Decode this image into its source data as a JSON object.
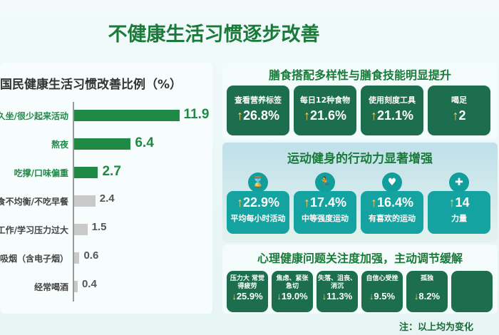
{
  "title": "不健康生活习惯逐步改善",
  "chart_data": {
    "type": "bar",
    "title": "国民健康生活习惯改善比例（%）",
    "categories": [
      "久坐/很少起来活动",
      "熬夜",
      "吃撑/口味偏重",
      "饮食不均衡/不吃早餐",
      "工作/学习压力过大",
      "吸烟（含电子烟）",
      "经常喝酒"
    ],
    "values": [
      11.9,
      6.4,
      2.7,
      2.4,
      1.5,
      0.6,
      0.4
    ],
    "value_labels": [
      "11.9",
      "6.4",
      "2.7",
      "2.4",
      "1.5",
      "0.6",
      "0.4"
    ],
    "highlight": [
      true,
      true,
      true,
      false,
      false,
      false,
      false
    ],
    "colors": {
      "highlight": "#1e8a46",
      "normal": "#c9c9c9"
    }
  },
  "diet": {
    "title": "膳食搭配多样性与膳食技能明显提升",
    "cards": [
      {
        "label": "查看营养标签",
        "value": "26.8%"
      },
      {
        "label": "每日12种食物",
        "value": "21.6%"
      },
      {
        "label": "使用刻度工具",
        "value": "21.1%"
      },
      {
        "label": "喝足",
        "value": "2"
      }
    ]
  },
  "sport": {
    "title": "运动健身的行动力显著增强",
    "cards": [
      {
        "icon": "hourglass-icon",
        "glyph": "⌛",
        "label": "平均每小时活动",
        "value": "22.9%"
      },
      {
        "icon": "exercise-icon",
        "glyph": "🏃",
        "label": "中等强度运动",
        "value": "17.4%"
      },
      {
        "icon": "heart-icon",
        "glyph": "♥",
        "label": "有喜欢的运动",
        "value": "16.4%"
      },
      {
        "icon": "strength-icon",
        "glyph": "✚",
        "label": "力量",
        "value": "14"
      }
    ]
  },
  "mental": {
    "title": "心理健康问题关注度加强，主动调节缓解",
    "cards": [
      {
        "label": "压力大 常觉得疲劳",
        "value": "25.9%"
      },
      {
        "label": "焦虑、紧张 急切",
        "value": "19.0%"
      },
      {
        "label": "失落、沮丧、 消沉",
        "value": "11.3%"
      },
      {
        "label": "自信心受挫",
        "value": "9.5%"
      },
      {
        "label": "孤独",
        "value": "8.2%"
      },
      {
        "label": "",
        "value": ""
      }
    ]
  },
  "note": "注：以上均为变化",
  "colors": {
    "green_dark": "#1c6e4f",
    "teal": "#14a3a0",
    "title_green": "#1a7a3a",
    "arrow": "#f3d36b"
  }
}
